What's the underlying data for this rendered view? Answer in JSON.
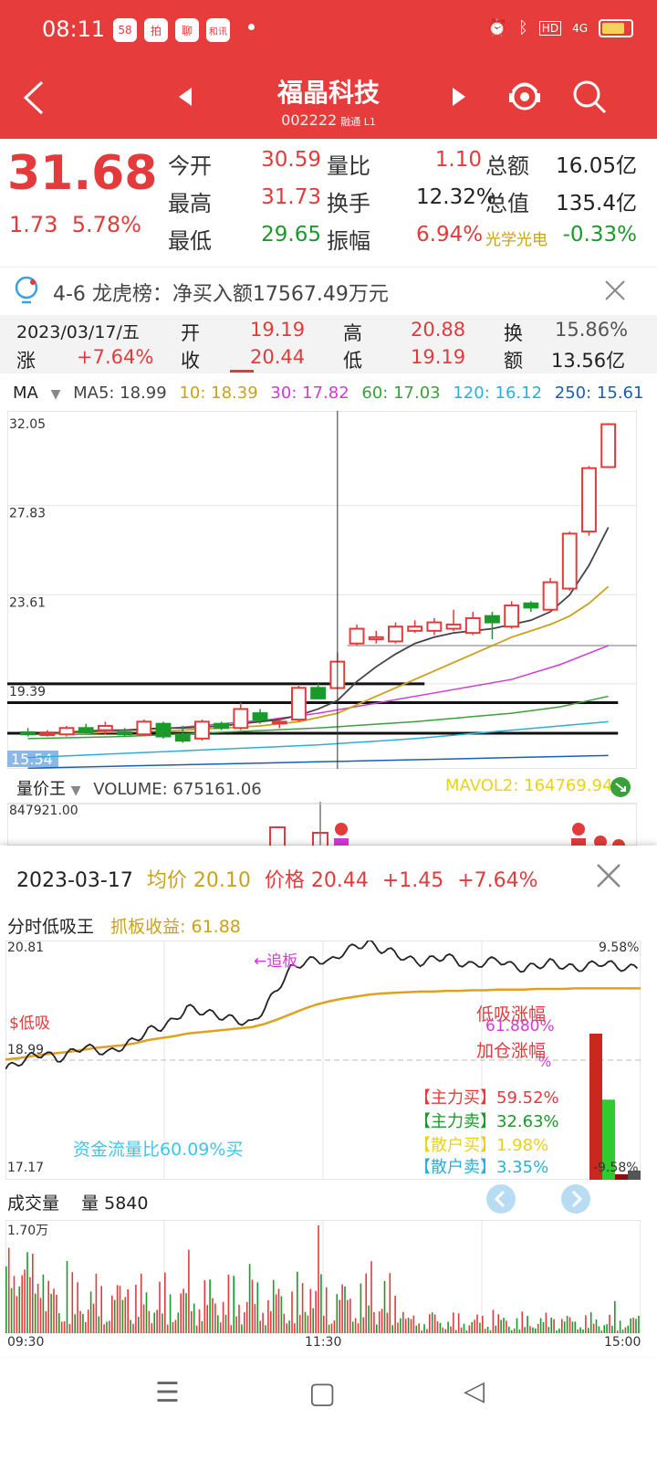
{
  "status": {
    "time": "08:11",
    "apps": [
      "58",
      "拍",
      "聊",
      "和讯"
    ],
    "network": "4G"
  },
  "header": {
    "title": "福晶科技",
    "code": "002222",
    "tag": "融通 L1"
  },
  "quote": {
    "price": "31.68",
    "change": "1.73",
    "change_pct": "5.78%",
    "rows": [
      [
        {
          "l": "今开",
          "v": "30.59",
          "c": "red"
        },
        {
          "l": "量比",
          "v": "1.10",
          "c": "red"
        },
        {
          "l": "总额",
          "v": "16.05亿",
          "c": "dark"
        }
      ],
      [
        {
          "l": "最高",
          "v": "31.73",
          "c": "red"
        },
        {
          "l": "换手",
          "v": "12.32%",
          "c": "dark"
        },
        {
          "l": "总值",
          "v": "135.4亿",
          "c": "dark"
        }
      ],
      [
        {
          "l": "最低",
          "v": "29.65",
          "c": "green"
        },
        {
          "l": "振幅",
          "v": "6.94%",
          "c": "red"
        },
        {
          "l": "光学光电",
          "v": "-0.33%",
          "c": "green"
        }
      ]
    ]
  },
  "notice": {
    "text": "4-6 龙虎榜：净买入额17567.49万元"
  },
  "dayinfo": {
    "date": "2023/03/17/五",
    "open_l": "开",
    "open": "19.19",
    "high_l": "高",
    "high": "20.88",
    "turn_l": "换",
    "turn": "15.86%",
    "rise_l": "涨",
    "rise": "+7.64%",
    "close_l": "收",
    "close": "20.44",
    "low_l": "低",
    "low": "19.19",
    "amt_l": "额",
    "amt": "13.56亿"
  },
  "ma": {
    "label": "MA",
    "ma5": "MA5: 18.99",
    "ma10": "10: 18.39",
    "ma30": "30: 17.82",
    "ma60": "60: 17.03",
    "ma120": "120: 16.12",
    "ma250": "250: 15.61",
    "colors": {
      "ma5": "#444444",
      "ma10": "#c9a21a",
      "ma30": "#d23bd2",
      "ma60": "#3aa03a",
      "ma120": "#2ab0d8",
      "ma250": "#1a5fb4"
    }
  },
  "kline": {
    "y_labels": [
      "32.05",
      "27.83",
      "23.61",
      "19.39"
    ],
    "low_label": "15.54",
    "ymax": 32.05,
    "ymin": 15.54,
    "candles": [
      {
        "o": 17.1,
        "h": 17.3,
        "l": 16.9,
        "c": 17.0
      },
      {
        "o": 17.0,
        "h": 17.2,
        "l": 16.9,
        "c": 17.05
      },
      {
        "o": 17.0,
        "h": 17.4,
        "l": 16.9,
        "c": 17.3
      },
      {
        "o": 17.3,
        "h": 17.5,
        "l": 17.0,
        "c": 17.1
      },
      {
        "o": 17.2,
        "h": 17.6,
        "l": 17.0,
        "c": 17.4
      },
      {
        "o": 17.1,
        "h": 17.3,
        "l": 16.9,
        "c": 17.0
      },
      {
        "o": 17.0,
        "h": 17.7,
        "l": 16.9,
        "c": 17.6
      },
      {
        "o": 17.5,
        "h": 17.6,
        "l": 16.8,
        "c": 16.9
      },
      {
        "o": 17.0,
        "h": 17.4,
        "l": 16.6,
        "c": 16.7
      },
      {
        "o": 16.8,
        "h": 17.7,
        "l": 16.7,
        "c": 17.6
      },
      {
        "o": 17.5,
        "h": 17.6,
        "l": 17.2,
        "c": 17.3
      },
      {
        "o": 17.3,
        "h": 18.5,
        "l": 17.2,
        "c": 18.2
      },
      {
        "o": 18.0,
        "h": 18.2,
        "l": 17.5,
        "c": 17.7
      },
      {
        "o": 17.6,
        "h": 17.8,
        "l": 17.3,
        "c": 17.6
      },
      {
        "o": 17.7,
        "h": 19.3,
        "l": 17.6,
        "c": 19.2
      },
      {
        "o": 19.2,
        "h": 19.4,
        "l": 18.7,
        "c": 18.7
      },
      {
        "o": 19.19,
        "h": 20.88,
        "l": 19.19,
        "c": 20.44
      },
      {
        "o": 21.3,
        "h": 22.2,
        "l": 21.2,
        "c": 22.0
      },
      {
        "o": 21.5,
        "h": 21.9,
        "l": 21.3,
        "c": 21.6
      },
      {
        "o": 21.4,
        "h": 22.3,
        "l": 21.3,
        "c": 22.1
      },
      {
        "o": 21.9,
        "h": 22.4,
        "l": 21.8,
        "c": 22.1
      },
      {
        "o": 21.9,
        "h": 22.5,
        "l": 21.7,
        "c": 22.3
      },
      {
        "o": 22.0,
        "h": 22.9,
        "l": 21.9,
        "c": 22.2
      },
      {
        "o": 21.8,
        "h": 22.8,
        "l": 21.7,
        "c": 22.5
      },
      {
        "o": 22.6,
        "h": 22.8,
        "l": 21.5,
        "c": 22.3
      },
      {
        "o": 22.1,
        "h": 23.3,
        "l": 22.0,
        "c": 23.1
      },
      {
        "o": 23.2,
        "h": 23.3,
        "l": 22.8,
        "c": 23.0
      },
      {
        "o": 22.9,
        "h": 24.4,
        "l": 22.8,
        "c": 24.2
      },
      {
        "o": 23.9,
        "h": 26.6,
        "l": 23.8,
        "c": 26.5
      },
      {
        "o": 26.6,
        "h": 29.7,
        "l": 26.4,
        "c": 29.6
      },
      {
        "o": 29.65,
        "h": 31.73,
        "l": 29.65,
        "c": 31.68
      }
    ],
    "ma5": [
      17.0,
      17.05,
      17.1,
      17.15,
      17.2,
      17.2,
      17.25,
      17.3,
      17.3,
      17.35,
      17.4,
      17.5,
      17.6,
      17.7,
      17.9,
      18.2,
      18.6,
      19.5,
      20.2,
      20.8,
      21.3,
      21.6,
      21.8,
      21.9,
      22.0,
      22.2,
      22.4,
      22.8,
      23.6,
      25.0,
      26.8
    ],
    "ma10": [
      17.0,
      17.0,
      17.05,
      17.05,
      17.1,
      17.1,
      17.15,
      17.15,
      17.2,
      17.25,
      17.3,
      17.35,
      17.4,
      17.5,
      17.6,
      17.8,
      18.0,
      18.4,
      18.8,
      19.2,
      19.6,
      20.0,
      20.4,
      20.8,
      21.2,
      21.6,
      21.9,
      22.2,
      22.6,
      23.2,
      24.0
    ],
    "hlines": [
      19.39,
      18.5,
      17.05
    ],
    "hline_end_idx": [
      20,
      30,
      30
    ]
  },
  "volume": {
    "label": "量价王",
    "value_label": "VOLUME: 675161.06",
    "mavol": "MAVOL2: 164769.94",
    "top": "847921.00"
  },
  "popup": {
    "date": "2023-03-17",
    "avg": "均价 20.10",
    "price": "价格 20.44",
    "chg": "+1.45",
    "pct": "+7.64%",
    "title": "分时低吸王",
    "gain": "抓板收益: 61.88",
    "ymax": "20.81",
    "ymid": "18.99",
    "ymin": "17.17",
    "pct_top": "9.58%",
    "pct_bot": "-9.58%",
    "tag_low": "$低吸",
    "tag_chase": "←追板",
    "low_gain_l": "低吸涨幅",
    "low_gain_v": "61.880%",
    "add_gain_l": "加仓涨幅",
    "add_gain_v": "%",
    "main_buy": "【主力买】59.52%",
    "main_sell": "【主力卖】32.63%",
    "retail_buy": "【散户买】1.98%",
    "retail_sell": "【散户卖】3.35%",
    "flow": "资金流量比60.09%买",
    "bars": {
      "main_buy": 59.52,
      "main_sell": 32.63,
      "retail_buy": 1.98,
      "retail_sell": 3.35
    },
    "vol_title": "成交量",
    "vol_val": "量 5840",
    "vol_top": "1.70万",
    "t_start": "09:30",
    "t_mid": "11:30",
    "t_end": "15:00",
    "price_series": [
      18.85,
      18.95,
      19.05,
      19.1,
      19.0,
      19.1,
      19.2,
      19.15,
      19.1,
      19.2,
      19.3,
      19.45,
      19.5,
      19.6,
      19.8,
      19.75,
      19.7,
      19.65,
      19.6,
      19.55,
      19.8,
      20.1,
      20.4,
      20.5,
      20.55,
      20.5,
      20.65,
      20.75,
      20.8,
      20.7,
      20.65,
      20.55,
      20.5,
      20.55,
      20.6,
      20.5,
      20.45,
      20.5,
      20.55,
      20.45,
      20.4,
      20.45,
      20.5,
      20.45,
      20.4,
      20.45,
      20.5,
      20.45,
      20.4,
      20.44
    ],
    "avg_series": [
      19.0,
      19.02,
      19.05,
      19.08,
      19.1,
      19.12,
      19.15,
      19.18,
      19.2,
      19.22,
      19.25,
      19.3,
      19.33,
      19.36,
      19.4,
      19.42,
      19.44,
      19.46,
      19.48,
      19.5,
      19.55,
      19.62,
      19.7,
      19.78,
      19.85,
      19.9,
      19.94,
      19.97,
      20.0,
      20.02,
      20.03,
      20.04,
      20.05,
      20.05,
      20.06,
      20.06,
      20.07,
      20.07,
      20.08,
      20.08,
      20.08,
      20.09,
      20.09,
      20.09,
      20.1,
      20.1,
      20.1,
      20.1,
      20.1,
      20.1
    ]
  },
  "nav": {
    "menu": "☰",
    "home": "▢",
    "back": "◁"
  }
}
